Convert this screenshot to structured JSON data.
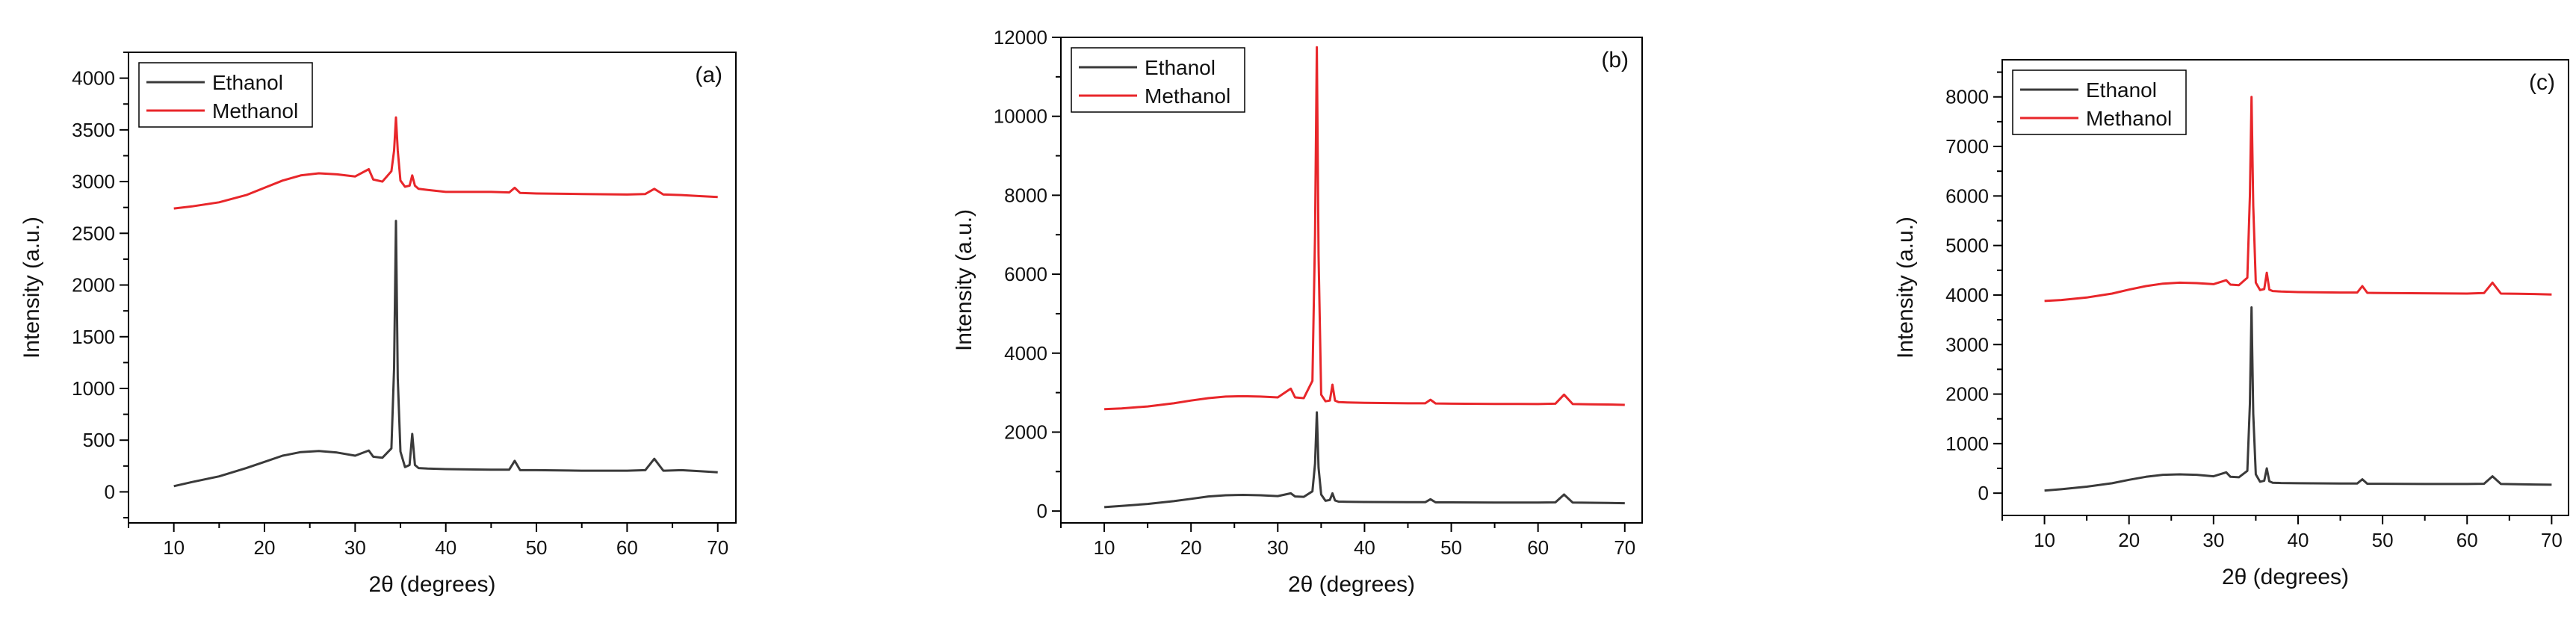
{
  "figure": {
    "panels": [
      "(a)",
      "(b)",
      "(c)"
    ]
  },
  "chart_data": [
    {
      "type": "line",
      "panel_label": "(a)",
      "xlabel": "2θ (degrees)",
      "ylabel": "Intensity (a.u.)",
      "xlim": [
        5,
        72
      ],
      "ylim": [
        -300,
        4250
      ],
      "xticks": [
        10,
        20,
        30,
        40,
        50,
        60,
        70
      ],
      "yticks": [
        0,
        500,
        1000,
        1500,
        2000,
        2500,
        3000,
        3500,
        4000
      ],
      "legend": {
        "position": "top-left"
      },
      "series": [
        {
          "name": "Ethanol",
          "color": "#3a3a3a",
          "x": [
            10,
            12,
            15,
            18,
            20,
            22,
            24,
            26,
            28,
            30,
            31.5,
            32,
            33,
            34,
            34.3,
            34.5,
            34.7,
            35,
            35.5,
            36,
            36.3,
            36.6,
            37,
            38,
            40,
            45,
            47,
            47.6,
            48.2,
            50,
            55,
            60,
            62,
            63,
            64,
            66,
            68,
            70
          ],
          "y": [
            55,
            95,
            150,
            230,
            290,
            350,
            385,
            395,
            380,
            350,
            400,
            340,
            330,
            420,
            1200,
            2620,
            1100,
            390,
            240,
            260,
            560,
            260,
            230,
            225,
            220,
            215,
            215,
            300,
            210,
            210,
            205,
            205,
            210,
            320,
            205,
            210,
            200,
            190
          ]
        },
        {
          "name": "Methanol",
          "color": "#e8262a",
          "x": [
            10,
            12,
            15,
            18,
            20,
            22,
            24,
            26,
            28,
            30,
            31.5,
            32,
            33,
            34,
            34.3,
            34.5,
            34.7,
            35,
            35.5,
            36,
            36.3,
            36.6,
            37,
            38,
            40,
            45,
            47,
            47.6,
            48.2,
            50,
            55,
            60,
            62,
            63,
            64,
            66,
            68,
            70
          ],
          "y": [
            2740,
            2760,
            2800,
            2870,
            2940,
            3010,
            3060,
            3080,
            3070,
            3050,
            3120,
            3020,
            3000,
            3100,
            3300,
            3620,
            3300,
            3010,
            2950,
            2960,
            3060,
            2960,
            2930,
            2920,
            2900,
            2900,
            2895,
            2940,
            2890,
            2885,
            2880,
            2875,
            2880,
            2930,
            2875,
            2870,
            2860,
            2850
          ]
        }
      ]
    },
    {
      "type": "line",
      "panel_label": "(b)",
      "xlabel": "2θ (degrees)",
      "ylabel": "Intensity (a.u.)",
      "xlim": [
        5,
        72
      ],
      "ylim": [
        -300,
        12000
      ],
      "xticks": [
        10,
        20,
        30,
        40,
        50,
        60,
        70
      ],
      "yticks": [
        0,
        2000,
        4000,
        6000,
        8000,
        10000,
        12000
      ],
      "legend": {
        "position": "top-left"
      },
      "series": [
        {
          "name": "Ethanol",
          "color": "#3a3a3a",
          "x": [
            10,
            12,
            15,
            18,
            20,
            22,
            24,
            26,
            28,
            30,
            31.5,
            32,
            33,
            34,
            34.3,
            34.5,
            34.7,
            35,
            35.5,
            36,
            36.3,
            36.6,
            37,
            38,
            40,
            45,
            47,
            47.6,
            48.2,
            50,
            55,
            60,
            62,
            63,
            64,
            66,
            68,
            70
          ],
          "y": [
            100,
            130,
            180,
            250,
            310,
            370,
            400,
            410,
            400,
            380,
            450,
            370,
            360,
            500,
            1200,
            2500,
            1100,
            420,
            260,
            280,
            450,
            270,
            240,
            235,
            230,
            225,
            225,
            300,
            220,
            220,
            215,
            215,
            220,
            420,
            215,
            210,
            205,
            200
          ]
        },
        {
          "name": "Methanol",
          "color": "#e8262a",
          "x": [
            10,
            12,
            15,
            18,
            20,
            22,
            24,
            26,
            28,
            30,
            31.5,
            32,
            33,
            34,
            34.3,
            34.5,
            34.7,
            35,
            35.5,
            36,
            36.3,
            36.6,
            37,
            38,
            40,
            45,
            47,
            47.6,
            48.2,
            50,
            55,
            60,
            62,
            63,
            64,
            66,
            68,
            70
          ],
          "y": [
            2580,
            2600,
            2650,
            2730,
            2800,
            2860,
            2900,
            2910,
            2900,
            2880,
            3100,
            2880,
            2860,
            3300,
            7000,
            11750,
            6500,
            2950,
            2780,
            2800,
            3200,
            2800,
            2760,
            2750,
            2740,
            2730,
            2730,
            2820,
            2725,
            2720,
            2715,
            2710,
            2720,
            2950,
            2710,
            2705,
            2700,
            2690
          ]
        }
      ]
    },
    {
      "type": "line",
      "panel_label": "(c)",
      "xlabel": "2θ (degrees)",
      "ylabel": "Intensity (a.u.)",
      "xlim": [
        5,
        72
      ],
      "ylim": [
        -450,
        8750
      ],
      "xticks": [
        10,
        20,
        30,
        40,
        50,
        60,
        70
      ],
      "yticks": [
        0,
        1000,
        2000,
        3000,
        4000,
        5000,
        6000,
        7000,
        8000
      ],
      "legend": {
        "position": "top-left"
      },
      "series": [
        {
          "name": "Ethanol",
          "color": "#3a3a3a",
          "x": [
            10,
            12,
            15,
            18,
            20,
            22,
            24,
            26,
            28,
            30,
            31.5,
            32,
            33,
            34,
            34.3,
            34.5,
            34.7,
            35,
            35.5,
            36,
            36.3,
            36.6,
            37,
            38,
            40,
            45,
            47,
            47.6,
            48.2,
            50,
            55,
            60,
            62,
            63,
            64,
            66,
            68,
            70
          ],
          "y": [
            50,
            80,
            130,
            200,
            270,
            330,
            370,
            380,
            370,
            340,
            420,
            330,
            320,
            450,
            1800,
            3750,
            1600,
            380,
            230,
            250,
            500,
            240,
            210,
            205,
            200,
            195,
            195,
            280,
            190,
            190,
            185,
            185,
            190,
            340,
            185,
            180,
            175,
            170
          ]
        },
        {
          "name": "Methanol",
          "color": "#e8262a",
          "x": [
            10,
            12,
            15,
            18,
            20,
            22,
            24,
            26,
            28,
            30,
            31.5,
            32,
            33,
            34,
            34.3,
            34.5,
            34.7,
            35,
            35.5,
            36,
            36.3,
            36.6,
            37,
            38,
            40,
            45,
            47,
            47.6,
            48.2,
            50,
            55,
            60,
            62,
            63,
            64,
            66,
            68,
            70
          ],
          "y": [
            3880,
            3900,
            3950,
            4030,
            4110,
            4180,
            4230,
            4250,
            4240,
            4220,
            4300,
            4210,
            4200,
            4350,
            6000,
            8000,
            5800,
            4250,
            4100,
            4120,
            4450,
            4110,
            4080,
            4070,
            4060,
            4050,
            4050,
            4180,
            4045,
            4040,
            4035,
            4030,
            4040,
            4250,
            4030,
            4025,
            4020,
            4010
          ]
        }
      ]
    }
  ]
}
